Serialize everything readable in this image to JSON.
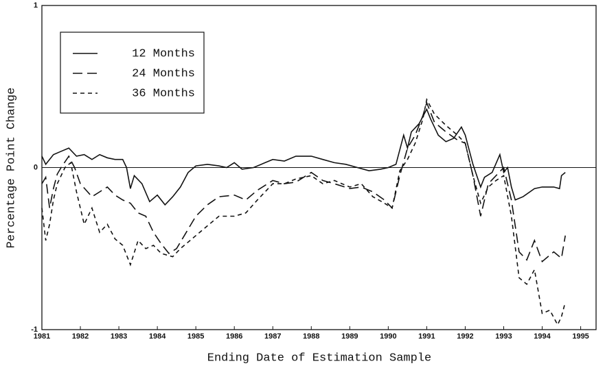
{
  "chart_data": {
    "type": "line",
    "xlabel": "Ending Date of Estimation Sample",
    "ylabel": "Percentage Point Change",
    "xlim": [
      1981,
      1995.4
    ],
    "xticks": [
      1981,
      1982,
      1983,
      1984,
      1985,
      1986,
      1987,
      1988,
      1989,
      1990,
      1991,
      1992,
      1993,
      1994,
      1995
    ],
    "ylim": [
      -1,
      1
    ],
    "yticks": [
      -1,
      0,
      1
    ],
    "zero_line": true,
    "legend": "upper left",
    "series": [
      {
        "name": "12 Months",
        "color": "#111111",
        "dash": "solid",
        "x": [
          1981.0,
          1981.1,
          1981.3,
          1981.5,
          1981.7,
          1981.9,
          1982.1,
          1982.3,
          1982.5,
          1982.7,
          1982.9,
          1983.1,
          1983.2,
          1983.3,
          1983.4,
          1983.6,
          1983.8,
          1984.0,
          1984.2,
          1984.4,
          1984.6,
          1984.8,
          1985.0,
          1985.3,
          1985.6,
          1985.8,
          1986.0,
          1986.2,
          1986.5,
          1986.8,
          1987.0,
          1987.3,
          1987.6,
          1988.0,
          1988.3,
          1988.6,
          1988.9,
          1989.2,
          1989.5,
          1989.8,
          1990.0,
          1990.2,
          1990.4,
          1990.5,
          1990.6,
          1990.8,
          1991.0,
          1991.1,
          1991.3,
          1991.5,
          1991.7,
          1991.9,
          1992.0,
          1992.2,
          1992.4,
          1992.5,
          1992.7,
          1992.9,
          1993.0,
          1993.1,
          1993.2,
          1993.3,
          1993.5,
          1993.8,
          1994.0,
          1994.3,
          1994.45,
          1994.5,
          1994.6
        ],
        "values": [
          0.07,
          0.02,
          0.08,
          0.1,
          0.12,
          0.07,
          0.08,
          0.05,
          0.08,
          0.06,
          0.05,
          0.05,
          0.0,
          -0.13,
          -0.05,
          -0.1,
          -0.21,
          -0.17,
          -0.23,
          -0.18,
          -0.12,
          -0.03,
          0.01,
          0.02,
          0.01,
          0.0,
          0.03,
          -0.01,
          0.0,
          0.03,
          0.05,
          0.04,
          0.07,
          0.07,
          0.05,
          0.03,
          0.02,
          0.0,
          -0.02,
          -0.01,
          0.0,
          0.02,
          0.2,
          0.12,
          0.22,
          0.27,
          0.36,
          0.3,
          0.2,
          0.16,
          0.18,
          0.25,
          0.2,
          0.02,
          -0.12,
          -0.06,
          -0.03,
          0.08,
          -0.03,
          0.0,
          -0.12,
          -0.2,
          -0.18,
          -0.13,
          -0.12,
          -0.12,
          -0.13,
          -0.05,
          -0.03
        ]
      },
      {
        "name": "24 Months",
        "color": "#111111",
        "dash": "long",
        "x": [
          1981.0,
          1981.1,
          1981.2,
          1981.3,
          1981.4,
          1981.5,
          1981.7,
          1981.85,
          1982.0,
          1982.3,
          1982.5,
          1982.7,
          1982.9,
          1983.1,
          1983.3,
          1983.5,
          1983.7,
          1983.9,
          1984.1,
          1984.3,
          1984.5,
          1984.7,
          1985.0,
          1985.3,
          1985.6,
          1986.0,
          1986.3,
          1986.6,
          1987.0,
          1987.3,
          1987.6,
          1988.0,
          1988.3,
          1988.6,
          1989.0,
          1989.3,
          1989.6,
          1989.9,
          1990.1,
          1990.3,
          1990.5,
          1990.7,
          1990.9,
          1991.0,
          1991.2,
          1991.5,
          1991.8,
          1992.0,
          1992.2,
          1992.4,
          1992.6,
          1992.8,
          1993.0,
          1993.2,
          1993.4,
          1993.6,
          1993.8,
          1994.0,
          1994.3,
          1994.5,
          1994.6
        ],
        "values": [
          -0.1,
          -0.06,
          -0.25,
          -0.13,
          -0.04,
          0.0,
          0.07,
          0.0,
          -0.1,
          -0.18,
          -0.15,
          -0.12,
          -0.17,
          -0.2,
          -0.22,
          -0.28,
          -0.3,
          -0.4,
          -0.47,
          -0.53,
          -0.5,
          -0.42,
          -0.3,
          -0.23,
          -0.18,
          -0.17,
          -0.2,
          -0.14,
          -0.08,
          -0.1,
          -0.09,
          -0.03,
          -0.08,
          -0.1,
          -0.13,
          -0.12,
          -0.15,
          -0.2,
          -0.25,
          -0.05,
          0.12,
          0.2,
          0.32,
          0.4,
          0.28,
          0.22,
          0.17,
          0.15,
          -0.05,
          -0.3,
          -0.1,
          -0.05,
          0.0,
          -0.2,
          -0.52,
          -0.57,
          -0.45,
          -0.58,
          -0.52,
          -0.56,
          -0.42
        ]
      },
      {
        "name": "36 Months",
        "color": "#111111",
        "dash": "short",
        "x": [
          1981.0,
          1981.1,
          1981.2,
          1981.3,
          1981.4,
          1981.6,
          1981.75,
          1981.9,
          1982.1,
          1982.3,
          1982.5,
          1982.7,
          1982.9,
          1983.1,
          1983.3,
          1983.5,
          1983.7,
          1983.9,
          1984.1,
          1984.4,
          1984.6,
          1985.0,
          1985.3,
          1985.6,
          1986.0,
          1986.3,
          1986.6,
          1987.0,
          1987.3,
          1987.6,
          1988.0,
          1988.3,
          1988.6,
          1989.0,
          1989.3,
          1989.6,
          1989.9,
          1990.1,
          1990.3,
          1990.5,
          1990.7,
          1990.9,
          1991.0,
          1991.2,
          1991.5,
          1991.8,
          1992.0,
          1992.2,
          1992.4,
          1992.6,
          1992.8,
          1993.0,
          1993.2,
          1993.4,
          1993.6,
          1993.8,
          1994.0,
          1994.2,
          1994.4,
          1994.5,
          1994.6
        ],
        "values": [
          -0.25,
          -0.45,
          -0.35,
          -0.2,
          -0.1,
          0.0,
          0.03,
          -0.15,
          -0.35,
          -0.25,
          -0.4,
          -0.35,
          -0.44,
          -0.48,
          -0.6,
          -0.45,
          -0.5,
          -0.48,
          -0.53,
          -0.55,
          -0.5,
          -0.42,
          -0.36,
          -0.3,
          -0.3,
          -0.28,
          -0.2,
          -0.1,
          -0.1,
          -0.07,
          -0.05,
          -0.1,
          -0.08,
          -0.12,
          -0.1,
          -0.18,
          -0.22,
          -0.25,
          -0.02,
          0.05,
          0.15,
          0.3,
          0.42,
          0.33,
          0.26,
          0.2,
          0.15,
          -0.05,
          -0.22,
          -0.12,
          -0.08,
          -0.05,
          -0.3,
          -0.68,
          -0.72,
          -0.63,
          -0.9,
          -0.88,
          -0.97,
          -0.92,
          -0.83
        ]
      }
    ]
  }
}
